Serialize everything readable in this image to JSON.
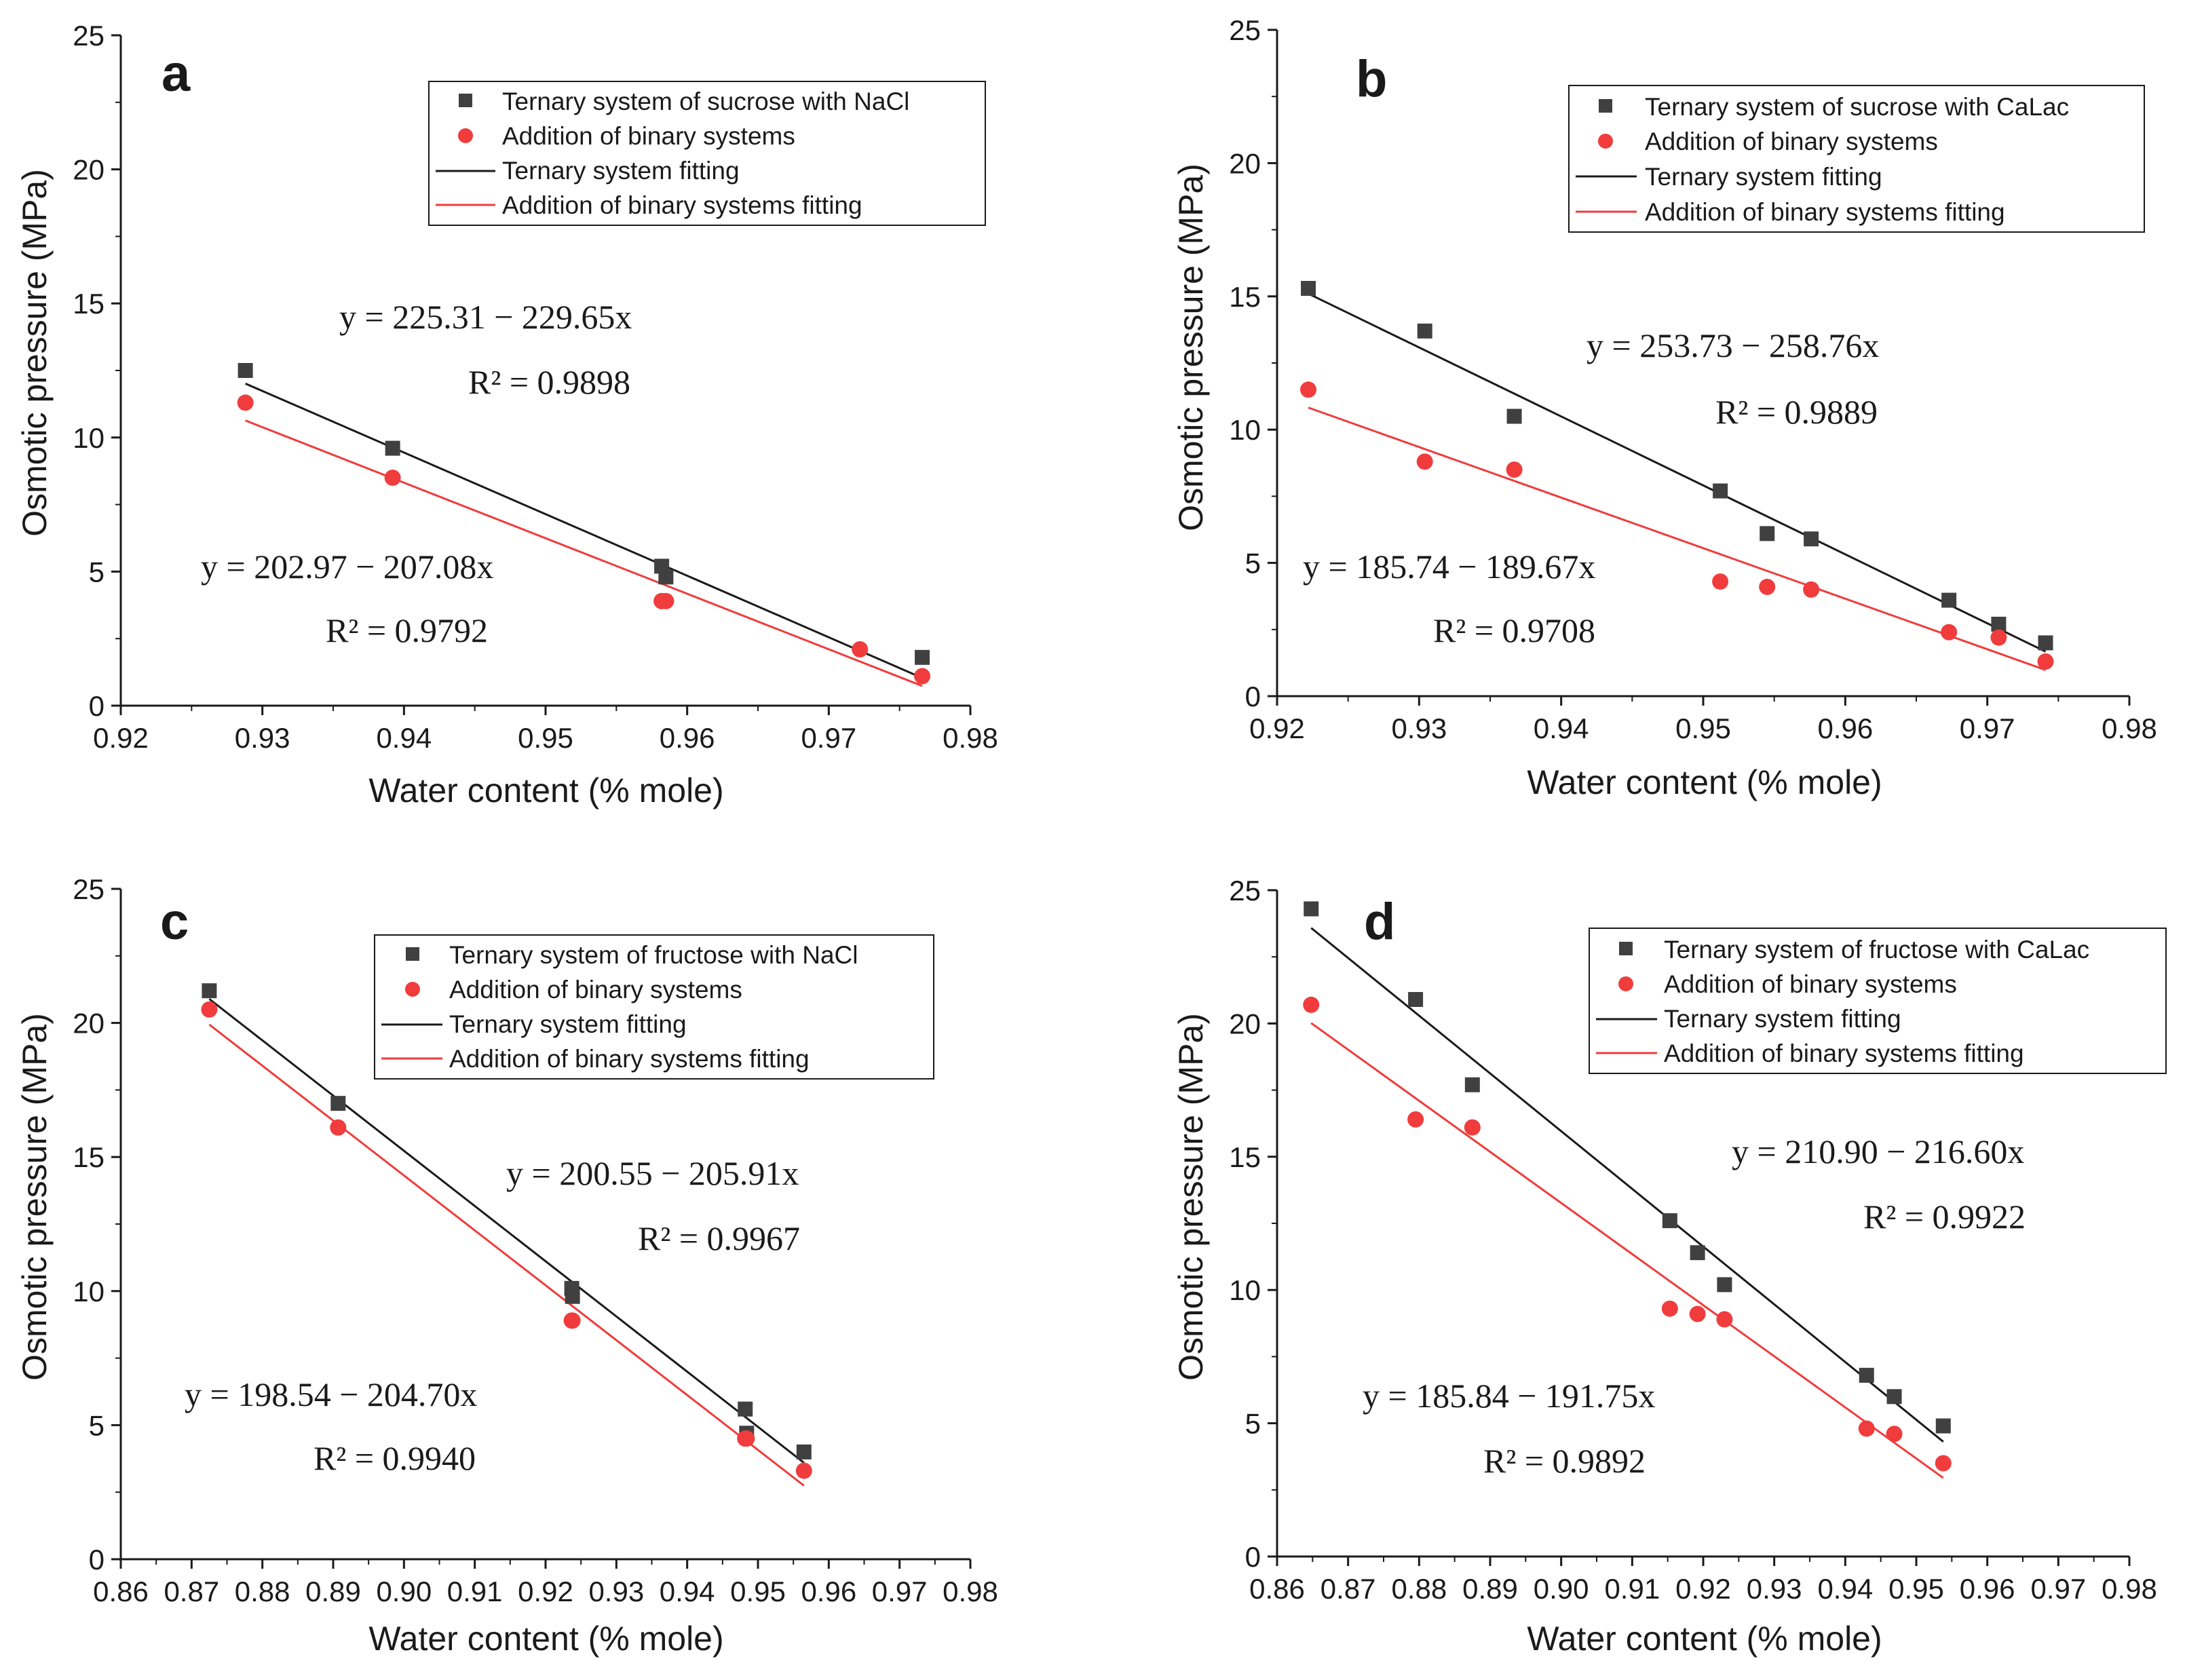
{
  "chart_data": [
    {
      "type": "scatter",
      "panel": "a",
      "xlabel": "Water content (% mole)",
      "ylabel": "Osmotic pressure (MPa)",
      "xlim": [
        0.92,
        0.98
      ],
      "ylim": [
        0,
        25
      ],
      "xticks": [
        "0.92",
        "0.93",
        "0.94",
        "0.95",
        "0.96",
        "0.97",
        "0.98"
      ],
      "yticks": [
        "0",
        "5",
        "10",
        "15",
        "20",
        "25"
      ],
      "legend": [
        "Ternary system of sucrose with NaCl",
        "Addition of binary systems",
        "Ternary system fitting",
        "Addition of binary systems fitting"
      ],
      "series": [
        {
          "name": "Ternary system of sucrose with NaCl",
          "marker": "square",
          "color": "#404040",
          "x": [
            0.9288,
            0.9392,
            0.9582,
            0.9585,
            0.9766
          ],
          "y": [
            12.5,
            9.6,
            5.2,
            4.8,
            1.8
          ]
        },
        {
          "name": "Addition of binary systems",
          "marker": "circle",
          "color": "#f03c3c",
          "x": [
            0.9288,
            0.9392,
            0.9582,
            0.9585,
            0.9722,
            0.9766
          ],
          "y": [
            11.3,
            8.5,
            3.9,
            3.9,
            2.1,
            1.1
          ]
        }
      ],
      "fits": [
        {
          "name": "Ternary system fitting",
          "color": "#1a1a1a",
          "intercept": 225.31,
          "slope": -229.65,
          "xrange": [
            0.9288,
            0.9766
          ]
        },
        {
          "name": "Addition of binary systems fitting",
          "color": "#f03c3c",
          "intercept": 202.97,
          "slope": -207.08,
          "xrange": [
            0.9288,
            0.9766
          ]
        }
      ],
      "equations": [
        {
          "eq": "y = 225.31 − 229.65x",
          "r2": "0.9898"
        },
        {
          "eq": "y = 202.97 − 207.08x",
          "r2": "0.9792"
        }
      ]
    },
    {
      "type": "scatter",
      "panel": "b",
      "xlabel": "Water content (% mole)",
      "ylabel": "Osmotic pressure (MPa)",
      "xlim": [
        0.92,
        0.98
      ],
      "ylim": [
        0,
        25
      ],
      "xticks": [
        "0.92",
        "0.93",
        "0.94",
        "0.95",
        "0.96",
        "0.97",
        "0.98"
      ],
      "yticks": [
        "0",
        "5",
        "10",
        "15",
        "20",
        "25"
      ],
      "legend": [
        "Ternary system of sucrose with CaLac",
        "Addition of binary systems",
        "Ternary system fitting",
        "Addition of binary systems fitting"
      ],
      "series": [
        {
          "name": "Ternary system of sucrose with CaLac",
          "marker": "square",
          "color": "#404040",
          "x": [
            0.9222,
            0.9304,
            0.9367,
            0.9512,
            0.9545,
            0.9576,
            0.9673,
            0.9708,
            0.9741
          ],
          "y": [
            15.3,
            13.7,
            10.5,
            7.7,
            6.1,
            5.9,
            3.6,
            2.7,
            2.0
          ]
        },
        {
          "name": "Addition of binary systems",
          "marker": "circle",
          "color": "#f03c3c",
          "x": [
            0.9222,
            0.9304,
            0.9367,
            0.9512,
            0.9545,
            0.9576,
            0.9673,
            0.9708,
            0.9741
          ],
          "y": [
            11.5,
            8.8,
            8.5,
            4.3,
            4.1,
            4.0,
            2.4,
            2.2,
            1.3
          ]
        }
      ],
      "fits": [
        {
          "name": "Ternary system fitting",
          "color": "#1a1a1a",
          "intercept": 253.73,
          "slope": -258.76,
          "xrange": [
            0.9222,
            0.9741
          ]
        },
        {
          "name": "Addition of binary systems fitting",
          "color": "#f03c3c",
          "intercept": 185.74,
          "slope": -189.67,
          "xrange": [
            0.9222,
            0.9741
          ]
        }
      ],
      "equations": [
        {
          "eq": "y = 253.73 − 258.76x",
          "r2": "0.9889"
        },
        {
          "eq": "y = 185.74 − 189.67x",
          "r2": "0.9708"
        }
      ]
    },
    {
      "type": "scatter",
      "panel": "c",
      "xlabel": "Water content (% mole)",
      "ylabel": "Osmotic pressure (MPa)",
      "xlim": [
        0.86,
        0.98
      ],
      "ylim": [
        0,
        25
      ],
      "xticks": [
        "0.86",
        "0.87",
        "0.88",
        "0.89",
        "0.90",
        "0.91",
        "0.92",
        "0.93",
        "0.94",
        "0.95",
        "0.96",
        "0.97",
        "0.98"
      ],
      "yticks": [
        "0",
        "5",
        "10",
        "15",
        "20",
        "25"
      ],
      "legend": [
        "Ternary system of fructose with NaCl",
        "Addition of binary systems",
        "Ternary system fitting",
        "Addition of binary systems fitting"
      ],
      "series": [
        {
          "name": "Ternary system of fructose with NaCl",
          "marker": "square",
          "color": "#404040",
          "x": [
            0.8725,
            0.8907,
            0.9237,
            0.9238,
            0.9482,
            0.9484,
            0.9565
          ],
          "y": [
            21.2,
            17.0,
            10.1,
            9.8,
            5.6,
            4.7,
            4.0
          ]
        },
        {
          "name": "Addition of binary systems",
          "marker": "circle",
          "color": "#f03c3c",
          "x": [
            0.8725,
            0.8907,
            0.9237,
            0.9238,
            0.9482,
            0.9484,
            0.9565
          ],
          "y": [
            20.5,
            16.1,
            8.9,
            8.9,
            4.5,
            4.5,
            3.3
          ]
        }
      ],
      "fits": [
        {
          "name": "Ternary system fitting",
          "color": "#1a1a1a",
          "intercept": 200.55,
          "slope": -205.91,
          "xrange": [
            0.8725,
            0.9565
          ]
        },
        {
          "name": "Addition of binary systems fitting",
          "color": "#f03c3c",
          "intercept": 198.54,
          "slope": -204.7,
          "xrange": [
            0.8725,
            0.9565
          ]
        }
      ],
      "equations": [
        {
          "eq": "y = 200.55 − 205.91x",
          "r2": "0.9967"
        },
        {
          "eq": "y = 198.54 − 204.70x",
          "r2": "0.9940"
        }
      ]
    },
    {
      "type": "scatter",
      "panel": "d",
      "xlabel": "Water content (% mole)",
      "ylabel": "Osmotic pressure (MPa)",
      "xlim": [
        0.86,
        0.98
      ],
      "ylim": [
        0,
        25
      ],
      "xticks": [
        "0.86",
        "0.87",
        "0.88",
        "0.89",
        "0.90",
        "0.91",
        "0.92",
        "0.93",
        "0.94",
        "0.95",
        "0.96",
        "0.97",
        "0.98"
      ],
      "yticks": [
        "0",
        "5",
        "10",
        "15",
        "20",
        "25"
      ],
      "legend": [
        "Ternary system of fructose with CaLac",
        "Addition of binary systems",
        "Ternary system fitting",
        "Addition of binary systems fitting"
      ],
      "series": [
        {
          "name": "Ternary system of fructose with CaLac",
          "marker": "square",
          "color": "#404040",
          "x": [
            0.8648,
            0.8795,
            0.8875,
            0.9153,
            0.9192,
            0.923,
            0.943,
            0.9469,
            0.9538
          ],
          "y": [
            24.3,
            20.9,
            17.7,
            12.6,
            11.4,
            10.2,
            6.8,
            6.0,
            4.9
          ]
        },
        {
          "name": "Addition of binary systems",
          "marker": "circle",
          "color": "#f03c3c",
          "x": [
            0.8648,
            0.8795,
            0.8875,
            0.9153,
            0.9192,
            0.923,
            0.943,
            0.9469,
            0.9538
          ],
          "y": [
            20.7,
            16.4,
            16.1,
            9.3,
            9.1,
            8.9,
            4.8,
            4.6,
            3.5
          ]
        }
      ],
      "fits": [
        {
          "name": "Ternary system fitting",
          "color": "#1a1a1a",
          "intercept": 210.9,
          "slope": -216.6,
          "xrange": [
            0.8648,
            0.9538
          ]
        },
        {
          "name": "Addition of binary systems fitting",
          "color": "#f03c3c",
          "intercept": 185.84,
          "slope": -191.75,
          "xrange": [
            0.8648,
            0.9538
          ]
        }
      ],
      "equations": [
        {
          "eq": "y = 210.90 − 216.60x",
          "r2": "0.9922"
        },
        {
          "eq": "y = 185.84 − 191.75x",
          "r2": "0.9892"
        }
      ]
    }
  ]
}
